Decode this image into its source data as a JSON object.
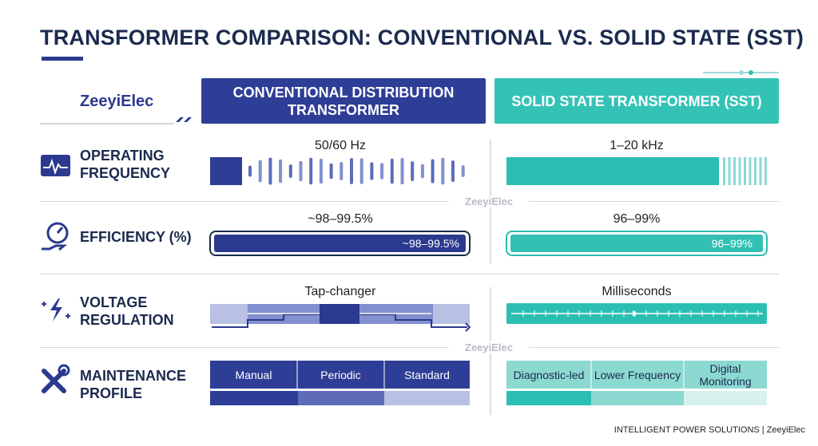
{
  "header": {
    "title": "TRANSFORMER COMPARISON: CONVENTIONAL VS. SOLID STATE (SST)",
    "brand": "ZeeyiElec",
    "columns": [
      "CONVENTIONAL DISTRIBUTION TRANSFORMER",
      "SOLID STATE TRANSFORMER (SST)"
    ]
  },
  "watermark": "ZeeyiElec",
  "rows": [
    {
      "label": "OPERATING FREQUENCY",
      "conventional": "50/60 Hz",
      "sst": "1–20 kHz"
    },
    {
      "label": "EFFICIENCY (%)",
      "conventional": "~98–99.5%",
      "sst": "96–99%"
    },
    {
      "label": "VOLTAGE REGULATION",
      "conventional": "Tap-changer",
      "sst": "Milliseconds"
    },
    {
      "label": "MAINTENANCE PROFILE",
      "conventional": [
        "Manual",
        "Periodic",
        "Standard"
      ],
      "sst": [
        "Diagnostic-led",
        "Lower Frequency",
        "Digital Monitoring"
      ]
    }
  ],
  "footer": "INTELLIGENT POWER SOLUTIONS | ZeeyiElec"
}
